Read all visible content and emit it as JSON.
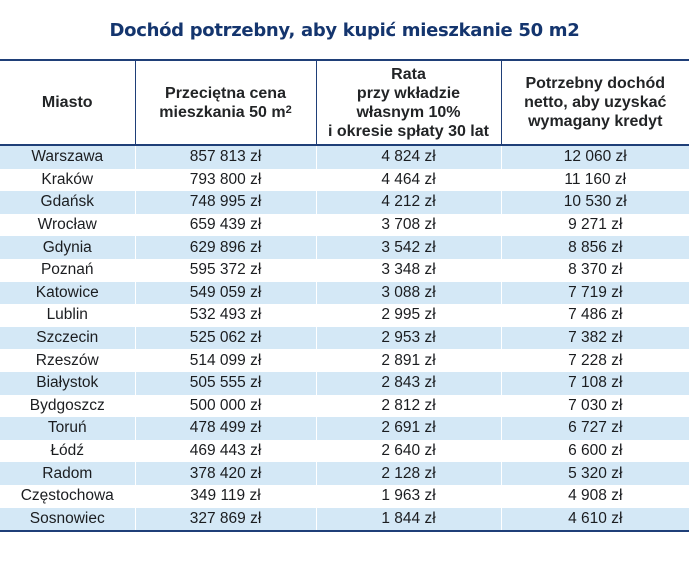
{
  "title": "Dochód potrzebny, aby kupić mieszkanie 50 m2",
  "headers": {
    "city": "Miasto",
    "price_line1": "Przeciętna cena",
    "price_line2": "mieszkania 50 m",
    "price_sup": "2",
    "rate_line1": "Rata",
    "rate_line2": "przy wkładzie",
    "rate_line3": "własnym 10%",
    "rate_line4": "i okresie spłaty 30 lat",
    "income_line1": "Potrzebny dochód",
    "income_line2": "netto, aby uzyskać",
    "income_line3": "wymagany kredyt"
  },
  "chart_data": {
    "type": "table",
    "title": "Dochód potrzebny, aby kupić mieszkanie 50 m2",
    "columns": [
      "Miasto",
      "Przeciętna cena mieszkania 50 m2",
      "Rata przy wkładzie własnym 10% i okresie spłaty 30 lat",
      "Potrzebny dochód netto, aby uzyskać wymagany kredyt"
    ],
    "rows": [
      [
        "Warszawa",
        "857 813 zł",
        "4 824 zł",
        "12 060 zł"
      ],
      [
        "Kraków",
        "793 800 zł",
        "4 464 zł",
        "11 160 zł"
      ],
      [
        "Gdańsk",
        "748 995 zł",
        "4 212 zł",
        "10 530 zł"
      ],
      [
        "Wrocław",
        "659 439 zł",
        "3 708 zł",
        "9 271 zł"
      ],
      [
        "Gdynia",
        "629 896 zł",
        "3 542 zł",
        "8 856 zł"
      ],
      [
        "Poznań",
        "595 372 zł",
        "3 348 zł",
        "8 370 zł"
      ],
      [
        "Katowice",
        "549 059 zł",
        "3 088 zł",
        "7 719 zł"
      ],
      [
        "Lublin",
        "532 493 zł",
        "2 995 zł",
        "7 486 zł"
      ],
      [
        "Szczecin",
        "525 062 zł",
        "2 953 zł",
        "7 382 zł"
      ],
      [
        "Rzeszów",
        "514 099 zł",
        "2 891 zł",
        "7 228 zł"
      ],
      [
        "Białystok",
        "505 555 zł",
        "2 843 zł",
        "7 108 zł"
      ],
      [
        "Bydgoszcz",
        "500 000 zł",
        "2 812 zł",
        "7 030 zł"
      ],
      [
        "Toruń",
        "478 499 zł",
        "2 691 zł",
        "6 727 zł"
      ],
      [
        "Łódź",
        "469 443 zł",
        "2 640 zł",
        "6 600 zł"
      ],
      [
        "Radom",
        "378 420 zł",
        "2 128 zł",
        "5 320 zł"
      ],
      [
        "Częstochowa",
        "349 119 zł",
        "1 963 zł",
        "4 908 zł"
      ],
      [
        "Sosnowiec",
        "327 869 zł",
        "1 844 zł",
        "4 610 zł"
      ]
    ]
  },
  "colors": {
    "title": "#14356e",
    "border": "#1f3f78",
    "row_stripe": "#d4e8f6"
  }
}
